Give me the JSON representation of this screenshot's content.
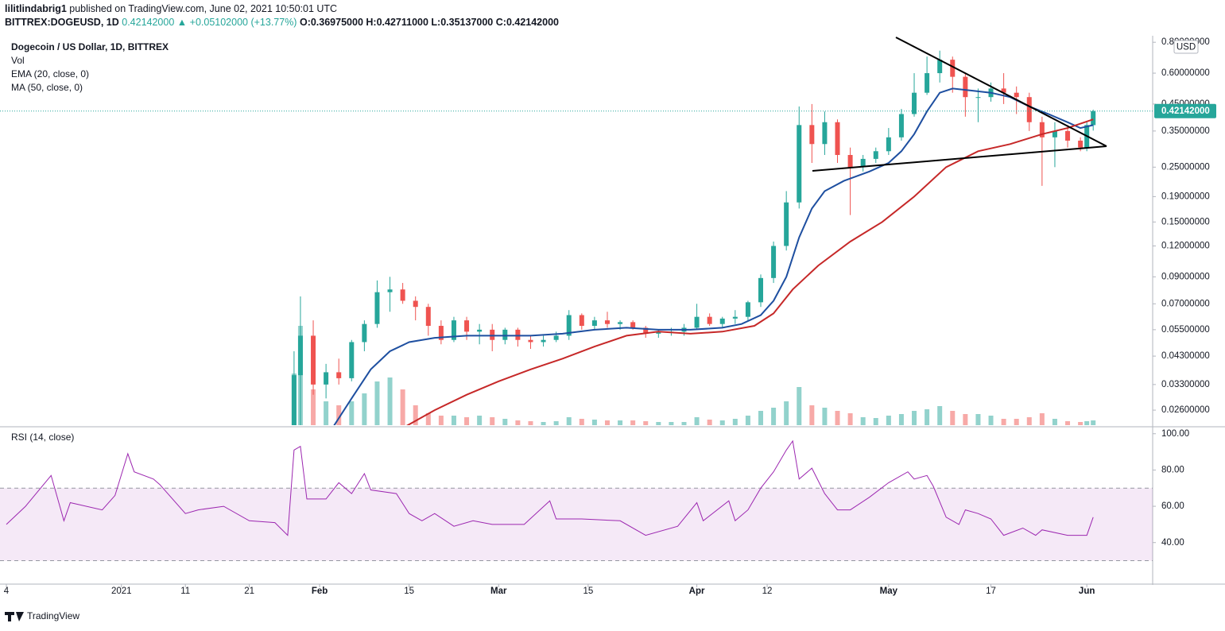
{
  "header": {
    "author": "lilitlindabrig1",
    "published": "published on TradingView.com, June 02, 2021 10:50:01 UTC",
    "symbol": "BITTREX:DOGEUSD, 1D",
    "last": "0.42142000",
    "arrow": "▲",
    "change": "+0.05102000 (+13.77%)",
    "open": "O:0.36975000",
    "high": "H:0.42711000",
    "low": "L:0.35137000",
    "close": "C:0.42142000"
  },
  "chart_data": [
    {
      "type": "candlestick",
      "title": "Dogecoin / US Dollar, 1D, BITTREX",
      "currency": "USD",
      "log_scale": true,
      "x": [
        28,
        29,
        31,
        33,
        35,
        37,
        39,
        41,
        43,
        45,
        47,
        49,
        51,
        53,
        55,
        57,
        59,
        61,
        63,
        65,
        67,
        69,
        71,
        73,
        75,
        77,
        79,
        81,
        83,
        85,
        87,
        89,
        91,
        93,
        95,
        97,
        99,
        101,
        103,
        105,
        107,
        109,
        111,
        113,
        115,
        117,
        119,
        121,
        123,
        125,
        127,
        129,
        131,
        133,
        135,
        137,
        139,
        141,
        143,
        145,
        147,
        149,
        151,
        152,
        153
      ],
      "open": [
        0.0075,
        0.036,
        0.052,
        0.033,
        0.037,
        0.035,
        0.049,
        0.058,
        0.078,
        0.08,
        0.072,
        0.068,
        0.057,
        0.05,
        0.06,
        0.054,
        0.055,
        0.05,
        0.055,
        0.05,
        0.049,
        0.05,
        0.052,
        0.063,
        0.057,
        0.06,
        0.058,
        0.059,
        0.056,
        0.053,
        0.054,
        0.054,
        0.056,
        0.062,
        0.058,
        0.061,
        0.062,
        0.071,
        0.089,
        0.12,
        0.18,
        0.37,
        0.31,
        0.38,
        0.28,
        0.25,
        0.27,
        0.29,
        0.33,
        0.41,
        0.5,
        0.6,
        0.68,
        0.58,
        0.48,
        0.48,
        0.52,
        0.5,
        0.48,
        0.38,
        0.33,
        0.35,
        0.32,
        0.3,
        0.36975
      ],
      "high": [
        0.045,
        0.075,
        0.06,
        0.04,
        0.042,
        0.05,
        0.06,
        0.087,
        0.09,
        0.085,
        0.075,
        0.07,
        0.06,
        0.062,
        0.062,
        0.058,
        0.058,
        0.056,
        0.056,
        0.052,
        0.052,
        0.054,
        0.066,
        0.064,
        0.062,
        0.065,
        0.06,
        0.06,
        0.057,
        0.055,
        0.056,
        0.058,
        0.07,
        0.064,
        0.062,
        0.066,
        0.072,
        0.092,
        0.125,
        0.2,
        0.44,
        0.45,
        0.42,
        0.39,
        0.3,
        0.28,
        0.3,
        0.36,
        0.43,
        0.6,
        0.7,
        0.74,
        0.7,
        0.6,
        0.52,
        0.55,
        0.6,
        0.53,
        0.5,
        0.4,
        0.38,
        0.37,
        0.33,
        0.38,
        0.42711
      ],
      "low": [
        0.007,
        0.021,
        0.03,
        0.029,
        0.033,
        0.034,
        0.045,
        0.056,
        0.065,
        0.07,
        0.06,
        0.052,
        0.048,
        0.049,
        0.05,
        0.048,
        0.045,
        0.048,
        0.047,
        0.046,
        0.047,
        0.049,
        0.05,
        0.055,
        0.055,
        0.056,
        0.055,
        0.055,
        0.051,
        0.051,
        0.052,
        0.052,
        0.055,
        0.057,
        0.056,
        0.058,
        0.06,
        0.068,
        0.085,
        0.115,
        0.17,
        0.26,
        0.28,
        0.26,
        0.16,
        0.24,
        0.26,
        0.28,
        0.32,
        0.4,
        0.49,
        0.55,
        0.5,
        0.4,
        0.38,
        0.46,
        0.45,
        0.41,
        0.35,
        0.21,
        0.25,
        0.3,
        0.29,
        0.29,
        0.35137
      ],
      "close": [
        0.036,
        0.052,
        0.033,
        0.037,
        0.035,
        0.049,
        0.058,
        0.078,
        0.08,
        0.072,
        0.068,
        0.057,
        0.05,
        0.06,
        0.054,
        0.055,
        0.05,
        0.055,
        0.05,
        0.049,
        0.05,
        0.052,
        0.063,
        0.057,
        0.06,
        0.058,
        0.059,
        0.056,
        0.053,
        0.054,
        0.054,
        0.056,
        0.062,
        0.058,
        0.061,
        0.062,
        0.071,
        0.089,
        0.12,
        0.18,
        0.37,
        0.31,
        0.38,
        0.28,
        0.25,
        0.27,
        0.29,
        0.33,
        0.41,
        0.5,
        0.6,
        0.68,
        0.58,
        0.48,
        0.48,
        0.52,
        0.5,
        0.48,
        0.38,
        0.33,
        0.35,
        0.32,
        0.3,
        0.37,
        0.42142
      ],
      "up_color": "#26a69a",
      "down_color": "#ef5350",
      "xlim": [
        -17,
        162.3
      ],
      "xticks": [
        {
          "value": -17,
          "label": "4"
        },
        {
          "value": 1,
          "label": "2021"
        },
        11,
        21,
        {
          "value": 32,
          "label": "Feb"
        },
        {
          "value": 46,
          "label": "15"
        },
        {
          "value": 60,
          "label": "Mar"
        },
        {
          "value": 74,
          "label": "15"
        },
        {
          "value": 91,
          "label": "Apr"
        },
        {
          "value": 102,
          "label": "12"
        },
        {
          "value": 121,
          "label": "May"
        },
        {
          "value": 137,
          "label": "17"
        },
        {
          "value": 152,
          "label": "Jun"
        }
      ],
      "ylim": [
        0.0226,
        0.85
      ],
      "yticks": [
        {
          "value": 0.026,
          "label": "0.02600000"
        },
        {
          "value": 0.033,
          "label": "0.03300000"
        },
        {
          "value": 0.043,
          "label": "0.04300000"
        },
        {
          "value": 0.055,
          "label": "0.05500000"
        },
        {
          "value": 0.07,
          "label": "0.07000000"
        },
        {
          "value": 0.09,
          "label": "0.09000000"
        },
        {
          "value": 0.12,
          "label": "0.12000000"
        },
        {
          "value": 0.15,
          "label": "0.15000000"
        },
        {
          "value": 0.19,
          "label": "0.19000000"
        },
        {
          "value": 0.25,
          "label": "0.25000000"
        },
        {
          "value": 0.35,
          "label": "0.35000000"
        },
        {
          "value": 0.45,
          "label": "0.45000000"
        },
        {
          "value": 0.6,
          "label": "0.60000000"
        },
        {
          "value": 0.8,
          "label": "0.80000000"
        }
      ],
      "last_price": {
        "value": 0.42142,
        "label": "0.42142000"
      },
      "series": [
        {
          "name": "Vol",
          "ylim": [
            0,
            490
          ],
          "values": [
            65,
            125,
            45,
            30,
            25,
            30,
            40,
            55,
            60,
            45,
            25,
            15,
            12,
            12,
            10,
            12,
            10,
            8,
            6,
            5,
            4,
            5,
            10,
            8,
            7,
            6,
            6,
            6,
            5,
            4,
            4,
            4,
            10,
            7,
            6,
            8,
            12,
            18,
            22,
            30,
            48,
            25,
            22,
            18,
            15,
            10,
            9,
            12,
            14,
            18,
            20,
            24,
            18,
            14,
            14,
            12,
            8,
            8,
            10,
            15,
            8,
            5,
            4,
            5,
            6
          ]
        },
        {
          "name": "EMA (20, close, 0)",
          "color": "#1e4fa0",
          "x": [
            34,
            37,
            40,
            43,
            46,
            50,
            55,
            60,
            65,
            70,
            75,
            80,
            85,
            90,
            95,
            98,
            101,
            103,
            105,
            107,
            109,
            111,
            114,
            118,
            121,
            123,
            125,
            127,
            129,
            131,
            134,
            137,
            140,
            143,
            146,
            149,
            151,
            153
          ],
          "values": [
            0.022,
            0.029,
            0.038,
            0.045,
            0.049,
            0.051,
            0.052,
            0.052,
            0.052,
            0.053,
            0.055,
            0.056,
            0.055,
            0.055,
            0.056,
            0.058,
            0.063,
            0.072,
            0.09,
            0.13,
            0.17,
            0.2,
            0.22,
            0.24,
            0.26,
            0.29,
            0.34,
            0.42,
            0.5,
            0.52,
            0.51,
            0.5,
            0.48,
            0.44,
            0.41,
            0.38,
            0.36,
            0.37
          ]
        },
        {
          "name": "MA (50, close, 0)",
          "color": "#c62828",
          "x": [
            45,
            50,
            55,
            60,
            65,
            70,
            75,
            80,
            85,
            90,
            95,
            100,
            103,
            106,
            110,
            115,
            120,
            125,
            130,
            135,
            140,
            145,
            149,
            153
          ],
          "values": [
            0.022,
            0.026,
            0.03,
            0.034,
            0.038,
            0.042,
            0.047,
            0.052,
            0.054,
            0.053,
            0.054,
            0.057,
            0.064,
            0.08,
            0.1,
            0.125,
            0.15,
            0.19,
            0.25,
            0.29,
            0.31,
            0.34,
            0.36,
            0.39
          ]
        }
      ]
    },
    {
      "type": "line",
      "title": "RSI (14, close)",
      "color": "#9c27b0",
      "band": [
        30,
        70
      ],
      "x": [
        -17,
        -14,
        -10,
        -8,
        -7,
        -2,
        0,
        2,
        3,
        6,
        7,
        11,
        13,
        17,
        21,
        25,
        27,
        28,
        29,
        30,
        33,
        35,
        37,
        39,
        40,
        44,
        46,
        48,
        50,
        53,
        56,
        59,
        64,
        68,
        69,
        73,
        79,
        83,
        88,
        91,
        92,
        96,
        97,
        99,
        101,
        103,
        105,
        106,
        107,
        109,
        111,
        113,
        115,
        118,
        121,
        124,
        125,
        127,
        128,
        130,
        132,
        133,
        135,
        137,
        139,
        142,
        144,
        145,
        149,
        152,
        153
      ],
      "values": [
        50,
        60,
        77,
        52,
        62,
        58,
        66,
        89,
        79,
        75,
        72,
        56,
        58,
        60,
        52,
        51,
        44,
        91,
        93,
        64,
        64,
        73,
        67,
        78,
        69,
        67,
        56,
        52,
        56,
        49,
        52,
        50,
        50,
        63,
        53,
        53,
        52,
        44,
        49,
        62,
        52,
        63,
        52,
        58,
        70,
        79,
        91,
        96,
        75,
        81,
        67,
        58,
        58,
        65,
        73,
        79,
        75,
        77,
        71,
        54,
        50,
        58,
        56,
        53,
        44,
        48,
        44,
        47,
        44,
        44,
        54
      ],
      "ylim": [
        17.1,
        103.4
      ],
      "yticks": [
        {
          "value": 40,
          "label": "40.00"
        },
        {
          "value": 60,
          "label": "60.00"
        },
        {
          "value": 80,
          "label": "80.00"
        },
        {
          "value": 100,
          "label": "100.00"
        }
      ]
    }
  ],
  "footer": {
    "brand": "TradingView"
  }
}
